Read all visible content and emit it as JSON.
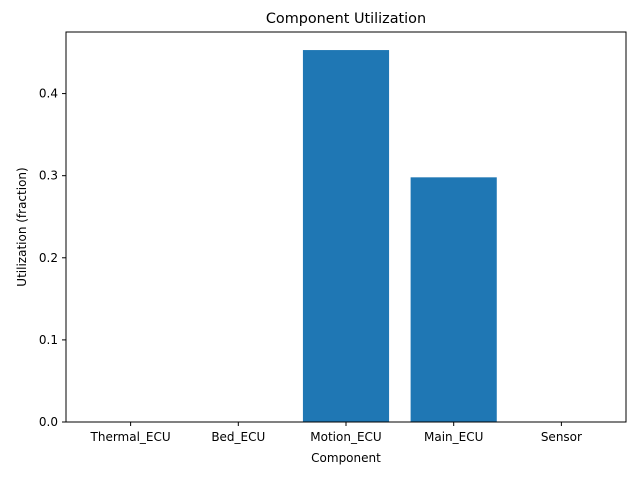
{
  "chart_data": {
    "type": "bar",
    "title": "Component Utilization",
    "xlabel": "Component",
    "ylabel": "Utilization (fraction)",
    "categories": [
      "Thermal_ECU",
      "Bed_ECU",
      "Motion_ECU",
      "Main_ECU",
      "Sensor"
    ],
    "values": [
      0.0,
      0.0,
      0.453,
      0.298,
      0.0
    ],
    "ylim": [
      0,
      0.475
    ],
    "yticks": [
      "0.0",
      "0.1",
      "0.2",
      "0.3",
      "0.4"
    ],
    "bar_color": "#1f77b4",
    "grid": false
  }
}
